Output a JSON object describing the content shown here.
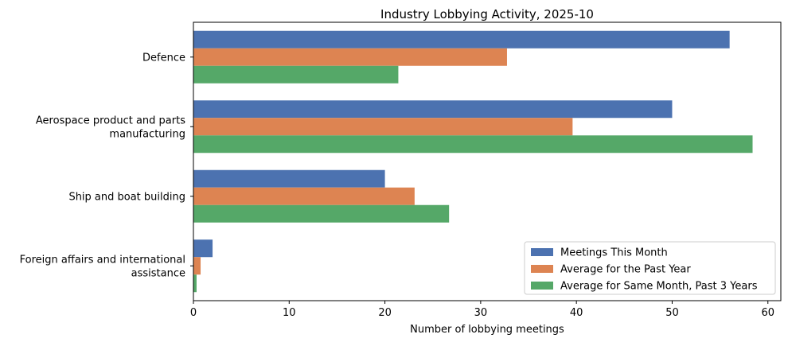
{
  "chart_data": {
    "type": "bar",
    "orientation": "horizontal",
    "title": "Industry Lobbying Activity, 2025-10",
    "xlabel": "Number of lobbying meetings",
    "ylabel": "",
    "xlim": [
      0,
      61.35
    ],
    "xticks": [
      0,
      10,
      20,
      30,
      40,
      50,
      60
    ],
    "categories": [
      [
        "Defence"
      ],
      [
        "Aerospace product and parts",
        "manufacturing"
      ],
      [
        "Ship and boat building"
      ],
      [
        "Foreign affairs and international",
        "assistance"
      ]
    ],
    "series": [
      {
        "name": "Meetings This Month",
        "color": "#4c72b0",
        "values": [
          56,
          50,
          20,
          2
        ]
      },
      {
        "name": "Average for the Past Year",
        "color": "#dd8452",
        "values": [
          32.75,
          39.6,
          23.1,
          0.75
        ]
      },
      {
        "name": "Average for Same Month, Past 3 Years",
        "color": "#55a868",
        "values": [
          21.4,
          58.4,
          26.7,
          0.33
        ]
      }
    ],
    "grid": false,
    "legend": "bottom-right"
  }
}
